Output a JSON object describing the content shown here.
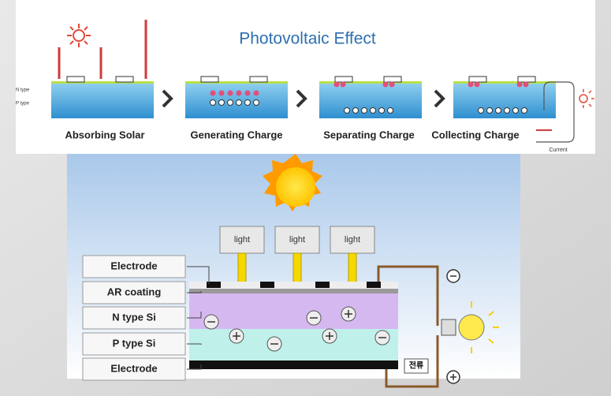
{
  "header": {
    "title": "Photovoltaic Effect"
  },
  "steps": [
    "Absorbing Solar",
    "Generating Charge",
    "Separating Charge",
    "Collecting Charge"
  ],
  "layer_tags": [
    "N type",
    "P type"
  ],
  "current_label": "Current",
  "light_labels": [
    "light",
    "light",
    "light"
  ],
  "layers": [
    "Electrode",
    "AR coating",
    "N type Si",
    "P type Si",
    "Electrode"
  ],
  "current_tag": "전류"
}
